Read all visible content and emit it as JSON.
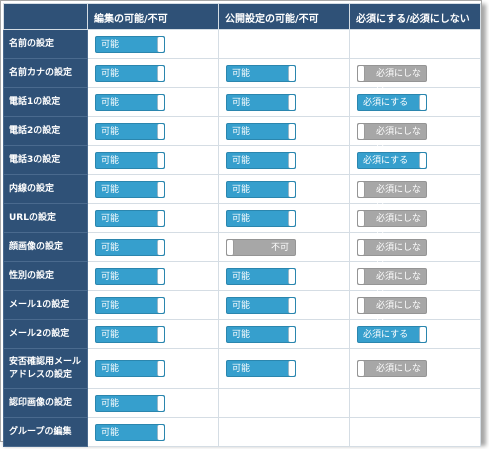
{
  "headers": {
    "edit": "編集の可能/不可",
    "public": "公開設定の可能/不可",
    "required": "必須にする/必須にしない"
  },
  "on_label": "可能",
  "off_label": "不可",
  "req_on_label": "必須にする",
  "req_off_label": "必須にしない",
  "colors": {
    "header_bg": "#2f5177",
    "toggle_on": "#369fcd",
    "toggle_off": "#a7a7a7"
  },
  "rows": [
    {
      "label": "名前の設定",
      "edit": true,
      "public": null,
      "required": null
    },
    {
      "label": "名前カナの設定",
      "edit": true,
      "public": true,
      "required": false
    },
    {
      "label": "電話1の設定",
      "edit": true,
      "public": true,
      "required": true
    },
    {
      "label": "電話2の設定",
      "edit": true,
      "public": true,
      "required": false
    },
    {
      "label": "電話3の設定",
      "edit": true,
      "public": true,
      "required": true
    },
    {
      "label": "内線の設定",
      "edit": true,
      "public": true,
      "required": false
    },
    {
      "label": "URLの設定",
      "edit": true,
      "public": true,
      "required": false
    },
    {
      "label": "顔画像の設定",
      "edit": true,
      "public": false,
      "required": false
    },
    {
      "label": "性別の設定",
      "edit": true,
      "public": true,
      "required": false
    },
    {
      "label": "メール1の設定",
      "edit": true,
      "public": true,
      "required": false
    },
    {
      "label": "メール2の設定",
      "edit": true,
      "public": true,
      "required": true
    },
    {
      "label": "安否確認用メールアドレスの設定",
      "edit": true,
      "public": true,
      "required": false
    },
    {
      "label": "認印画像の設定",
      "edit": true,
      "public": null,
      "required": null
    },
    {
      "label": "グループの編集",
      "edit": true,
      "public": null,
      "required": null
    }
  ]
}
